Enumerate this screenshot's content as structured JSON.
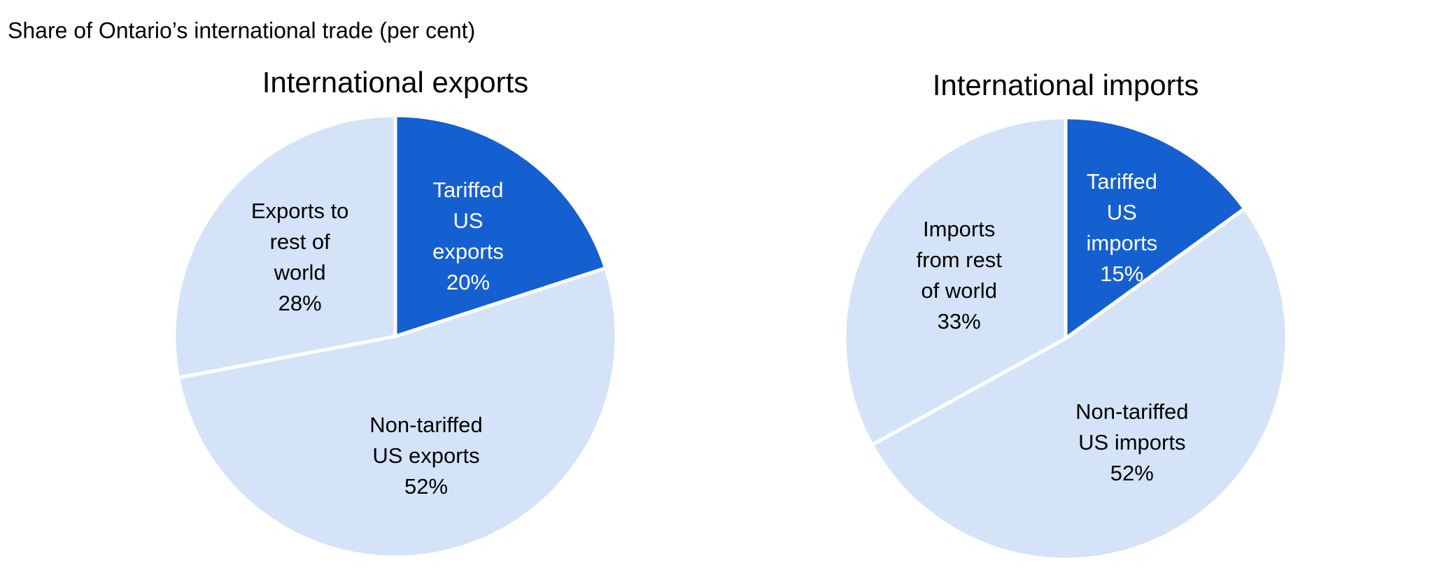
{
  "header": {
    "title": "Share of Ontario’s international trade (per cent)"
  },
  "chart_data": [
    {
      "type": "pie",
      "title": "International exports",
      "categories": [
        "Tariffed US exports",
        "Non-tariffed US exports",
        "Exports to rest of world"
      ],
      "values": [
        20,
        52,
        28
      ],
      "value_labels": [
        "20%",
        "52%",
        "28%"
      ],
      "colors": [
        "#1560d0",
        "#d4e3f8",
        "#d4e3f8"
      ]
    },
    {
      "type": "pie",
      "title": "International imports",
      "categories": [
        "Tariffed US imports",
        "Non-tariffed US imports",
        "Imports from rest of world"
      ],
      "values": [
        15,
        52,
        33
      ],
      "value_labels": [
        "15%",
        "52%",
        "33%"
      ],
      "colors": [
        "#1560d0",
        "#d4e3f8",
        "#d4e3f8"
      ]
    }
  ]
}
